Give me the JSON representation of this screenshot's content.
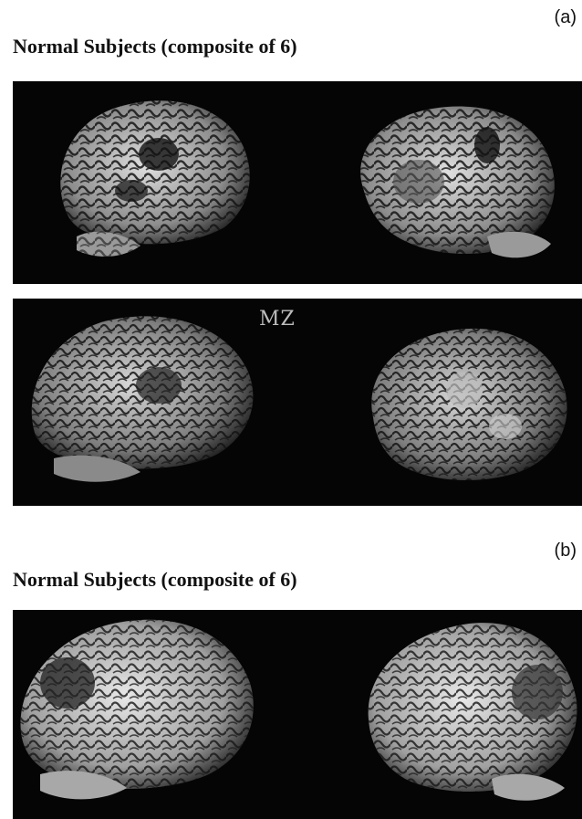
{
  "panel_a": {
    "letter": "(a)",
    "title": "Normal Subjects (composite of 6)"
  },
  "panel_mz": {
    "tag": "MZ"
  },
  "panel_b": {
    "letter": "(b)",
    "title": "Normal Subjects (composite of 6)"
  },
  "colors": {
    "background": "#ffffff",
    "scan_background": "#050505",
    "cortex": "#d8d8d8"
  }
}
